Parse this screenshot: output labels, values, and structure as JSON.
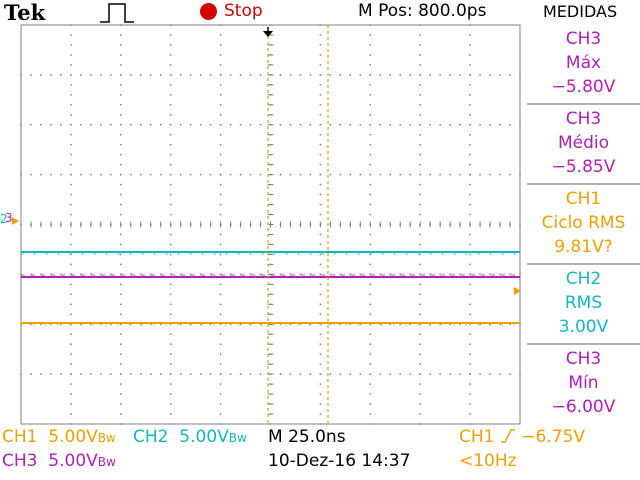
{
  "header": {
    "brand": "Tek",
    "trigger_icon": "pulse-icon",
    "run_state": "Stop",
    "run_state_color": "#d40000",
    "mpos": "M Pos: 800.0ps",
    "panel_title": "MEDIDAS"
  },
  "colors": {
    "ch1": "#f0a000",
    "ch2": "#10b8c0",
    "ch3": "#b020b8",
    "grid": "#808080"
  },
  "measurements": [
    {
      "channel": "CH3",
      "label": "Máx",
      "value": "−5.80V",
      "color": "#b020b8"
    },
    {
      "channel": "CH3",
      "label": "Médio",
      "value": "−5.85V",
      "color": "#b020b8"
    },
    {
      "channel": "CH1",
      "label": "Ciclo RMS",
      "value": "9.81V?",
      "color": "#f0a000"
    },
    {
      "channel": "CH2",
      "label": "RMS",
      "value": "3.00V",
      "color": "#10b8c0"
    },
    {
      "channel": "CH3",
      "label": "Mín",
      "value": "−6.00V",
      "color": "#b020b8"
    }
  ],
  "footer": {
    "ch1_name": "CH1",
    "ch1_scale": "5.00V",
    "ch2_name": "CH2",
    "ch2_scale": "5.00V",
    "ch3_name": "CH3",
    "ch3_scale": "5.00V",
    "bw_suffix": "Bw",
    "timebase": "M 25.0ns",
    "date": "10-Dez-16 14:37",
    "trig_channel": "CH1",
    "trig_level": "−6.75V",
    "trig_freq": "<10Hz"
  },
  "markers": {
    "ch2_ground": "2",
    "ch3_ground": "3"
  }
}
